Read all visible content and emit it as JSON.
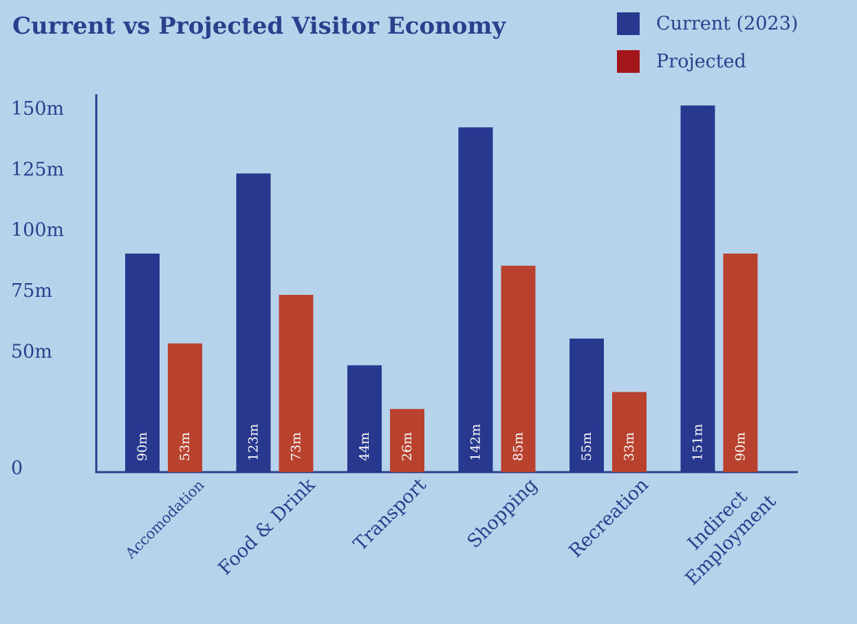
{
  "chart_data": {
    "type": "bar",
    "title": "Current vs Projected Visitor Economy",
    "categories": [
      "Accomodation",
      "Food & Drink",
      "Transport",
      "Shopping",
      "Recreation",
      "Indirect Employment"
    ],
    "series": [
      {
        "name": "Current (2023)",
        "color": "#27388e",
        "values": [
          90,
          123,
          44,
          142,
          55,
          151
        ],
        "labels": [
          "90m",
          "123m",
          "44m",
          "142m",
          "55m",
          "151m"
        ]
      },
      {
        "name": "Projected",
        "color": "#b8422e",
        "values": [
          53,
          73,
          26,
          85,
          33,
          90
        ],
        "labels": [
          "53m",
          "73m",
          "26m",
          "85m",
          "33m",
          "90m"
        ]
      }
    ],
    "legend_swatch_colors": [
      "#27388e",
      "#a3171a"
    ],
    "yticks": [
      {
        "value": 0,
        "label": "0"
      },
      {
        "value": 50,
        "label": "50m"
      },
      {
        "value": 75,
        "label": "75m"
      },
      {
        "value": 100,
        "label": "100m"
      },
      {
        "value": 125,
        "label": "125m"
      },
      {
        "value": 150,
        "label": "150m"
      }
    ],
    "ylim": [
      0,
      155
    ],
    "xlabel": "",
    "ylabel": "",
    "grid": false,
    "legend_position": "top-right",
    "axis_color": "#2c3e8c"
  }
}
